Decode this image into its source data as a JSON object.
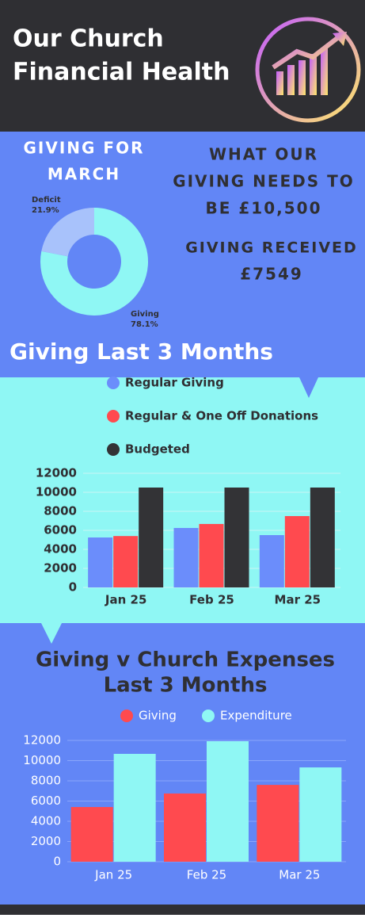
{
  "header": {
    "title": [
      "Our Church",
      "Financial Health"
    ]
  },
  "march": {
    "heading": [
      "GIVING FOR",
      "MARCH"
    ],
    "needs": [
      "WHAT OUR",
      "GIVING NEEDS TO",
      "BE £10,500"
    ],
    "received": [
      "GIVING RECEIVED",
      "£7549"
    ]
  },
  "chart_data": [
    {
      "type": "pie",
      "categories": [
        "Giving",
        "Deficit"
      ],
      "values": [
        78.1,
        21.9
      ],
      "value_labels": [
        "78.1%",
        "21.9%"
      ],
      "colors": [
        "#8ff7f4",
        "#a8c2fb"
      ]
    },
    {
      "type": "bar",
      "title": [
        "Giving Last 3 Months"
      ],
      "categories": [
        "Jan 25",
        "Feb 25",
        "Mar 25"
      ],
      "series": [
        {
          "name": "Regular Giving",
          "color": "#6b8dfb",
          "values": [
            5250,
            6250,
            5500
          ]
        },
        {
          "name": "Regular & One Off Donations",
          "color": "#ff4a4f",
          "values": [
            5400,
            6670,
            7500
          ]
        },
        {
          "name": "Budgeted",
          "color": "#333336",
          "values": [
            10500,
            10500,
            10500
          ]
        }
      ],
      "ylim": [
        0,
        12000
      ],
      "yticks": [
        0,
        2000,
        4000,
        6000,
        8000,
        10000,
        12000
      ],
      "grid": true,
      "legend": "top"
    },
    {
      "type": "bar",
      "title": [
        "Giving v Church Expenses",
        "Last 3 Months"
      ],
      "categories": [
        "Jan 25",
        "Feb 25",
        "Mar 25"
      ],
      "series": [
        {
          "name": "Giving",
          "color": "#ff4a4f",
          "values": [
            5410,
            6750,
            7600
          ]
        },
        {
          "name": "Expenditure",
          "color": "#8ff7f4",
          "values": [
            10670,
            11920,
            9330
          ]
        }
      ],
      "ylim": [
        0,
        12000
      ],
      "yticks": [
        0,
        2000,
        4000,
        6000,
        8000,
        10000,
        12000
      ],
      "grid": true,
      "legend": "top"
    }
  ]
}
